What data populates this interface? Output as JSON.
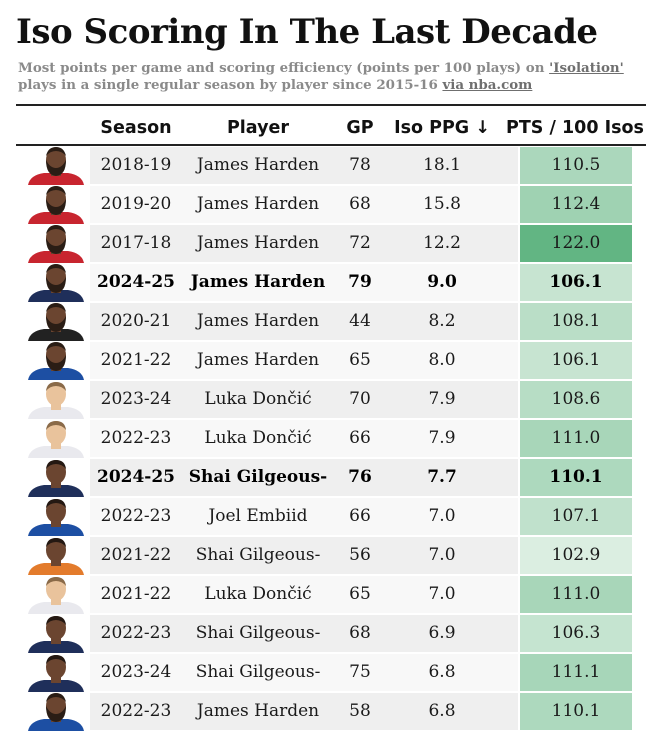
{
  "title": "Iso Scoring In The Last Decade",
  "subtitle": {
    "part1": "Most points per game and scoring efficiency (points per 100 plays) on ",
    "link1": "'Isolation'",
    "part2": " plays in a single regular season by player since 2015-16 ",
    "link2": "via nba.com"
  },
  "colors": {
    "row_odd": "#efefef",
    "row_even": "#f8f8f8",
    "green_low": "#dbeee1",
    "green_high": "#62b583",
    "skin_dark": "#6b4530",
    "skin_light": "#e9c39c",
    "beard": "#2a1d15",
    "jersey_red": "#c8252f",
    "jersey_blue": "#1d4fa3",
    "jersey_navy": "#1f2f5a",
    "jersey_white": "#e9e9ee",
    "jersey_black": "#222222",
    "jersey_orange": "#e37b2c"
  },
  "chart_data": {
    "type": "table",
    "columns": [
      "Season",
      "Player",
      "GP",
      "Iso PPG ↓",
      "PTS / 100 Isos"
    ],
    "sort": "Iso PPG descending",
    "rows": [
      {
        "season": "2018-19",
        "player": "James Harden",
        "gp": "78",
        "ppg": "18.1",
        "pts100": "110.5",
        "bold": false,
        "jersey": "red",
        "skin": "dark",
        "beard": true
      },
      {
        "season": "2019-20",
        "player": "James Harden",
        "gp": "68",
        "ppg": "15.8",
        "pts100": "112.4",
        "bold": false,
        "jersey": "red",
        "skin": "dark",
        "beard": true
      },
      {
        "season": "2017-18",
        "player": "James Harden",
        "gp": "72",
        "ppg": "12.2",
        "pts100": "122.0",
        "bold": false,
        "jersey": "red",
        "skin": "dark",
        "beard": true
      },
      {
        "season": "2024-25",
        "player": "James Harden",
        "gp": "79",
        "ppg": "9.0",
        "pts100": "106.1",
        "bold": true,
        "jersey": "navy",
        "skin": "dark",
        "beard": true
      },
      {
        "season": "2020-21",
        "player": "James Harden",
        "gp": "44",
        "ppg": "8.2",
        "pts100": "108.1",
        "bold": false,
        "jersey": "black",
        "skin": "dark",
        "beard": true
      },
      {
        "season": "2021-22",
        "player": "James Harden",
        "gp": "65",
        "ppg": "8.0",
        "pts100": "106.1",
        "bold": false,
        "jersey": "blue",
        "skin": "dark",
        "beard": true
      },
      {
        "season": "2023-24",
        "player": "Luka Dončić",
        "gp": "70",
        "ppg": "7.9",
        "pts100": "108.6",
        "bold": false,
        "jersey": "white",
        "skin": "light",
        "beard": false
      },
      {
        "season": "2022-23",
        "player": "Luka Dončić",
        "gp": "66",
        "ppg": "7.9",
        "pts100": "111.0",
        "bold": false,
        "jersey": "white",
        "skin": "light",
        "beard": false
      },
      {
        "season": "2024-25",
        "player": "Shai Gilgeous-",
        "gp": "76",
        "ppg": "7.7",
        "pts100": "110.1",
        "bold": true,
        "jersey": "navy",
        "skin": "dark",
        "beard": false
      },
      {
        "season": "2022-23",
        "player": "Joel Embiid",
        "gp": "66",
        "ppg": "7.0",
        "pts100": "107.1",
        "bold": false,
        "jersey": "blue",
        "skin": "dark",
        "beard": false
      },
      {
        "season": "2021-22",
        "player": "Shai Gilgeous-",
        "gp": "56",
        "ppg": "7.0",
        "pts100": "102.9",
        "bold": false,
        "jersey": "orange",
        "skin": "dark",
        "beard": false
      },
      {
        "season": "2021-22",
        "player": "Luka Dončić",
        "gp": "65",
        "ppg": "7.0",
        "pts100": "111.0",
        "bold": false,
        "jersey": "white",
        "skin": "light",
        "beard": false
      },
      {
        "season": "2022-23",
        "player": "Shai Gilgeous-",
        "gp": "68",
        "ppg": "6.9",
        "pts100": "106.3",
        "bold": false,
        "jersey": "navy",
        "skin": "dark",
        "beard": false
      },
      {
        "season": "2023-24",
        "player": "Shai Gilgeous-",
        "gp": "75",
        "ppg": "6.8",
        "pts100": "111.1",
        "bold": false,
        "jersey": "navy",
        "skin": "dark",
        "beard": false
      },
      {
        "season": "2022-23",
        "player": "James Harden",
        "gp": "58",
        "ppg": "6.8",
        "pts100": "110.1",
        "bold": false,
        "jersey": "blue",
        "skin": "dark",
        "beard": true
      }
    ]
  }
}
